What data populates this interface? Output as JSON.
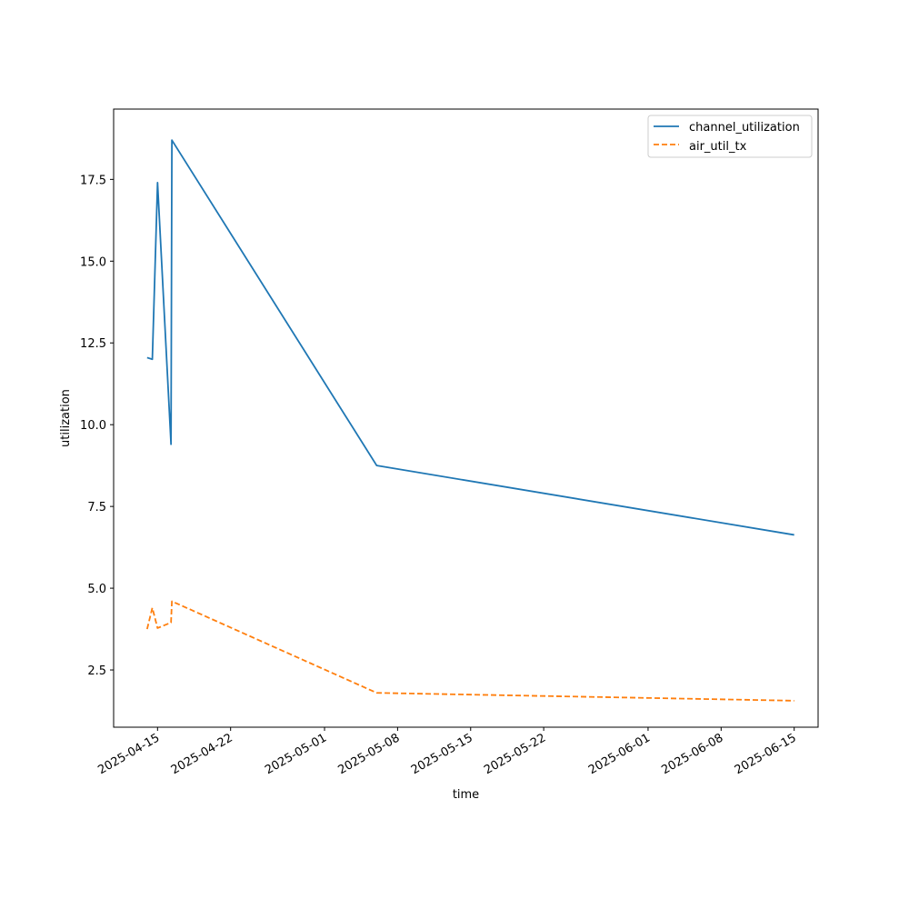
{
  "chart_data": {
    "type": "line",
    "title": "",
    "xlabel": "time",
    "ylabel": "utilization",
    "x_is_date": true,
    "xlim": [
      "2025-04-10T19:00:00",
      "2025-06-17T07:00:00"
    ],
    "ylim": [
      0.75,
      19.65
    ],
    "xticks": [
      "2025-04-15",
      "2025-04-22",
      "2025-05-01",
      "2025-05-08",
      "2025-05-15",
      "2025-05-22",
      "2025-06-01",
      "2025-06-08",
      "2025-06-15"
    ],
    "yticks": [
      2.5,
      5.0,
      7.5,
      10.0,
      12.5,
      15.0,
      17.5
    ],
    "ytick_labels": [
      "2.5",
      "5.0",
      "7.5",
      "10.0",
      "12.5",
      "15.0",
      "17.5"
    ],
    "grid": false,
    "legend_position": "upper right",
    "series": [
      {
        "name": "channel_utilization",
        "style": "solid",
        "color": "#1f77b4",
        "points": [
          {
            "x": "2025-04-14T00:00:00",
            "y": 12.05
          },
          {
            "x": "2025-04-14T12:00:00",
            "y": 12.0
          },
          {
            "x": "2025-04-15T00:00:00",
            "y": 17.4
          },
          {
            "x": "2025-04-16T07:00:00",
            "y": 9.4
          },
          {
            "x": "2025-04-16T09:00:00",
            "y": 18.7
          },
          {
            "x": "2025-05-06T00:00:00",
            "y": 8.75
          },
          {
            "x": "2025-06-15T00:00:00",
            "y": 6.63
          }
        ]
      },
      {
        "name": "air_util_tx",
        "style": "dashed",
        "color": "#ff7f0e",
        "points": [
          {
            "x": "2025-04-14T00:00:00",
            "y": 3.75
          },
          {
            "x": "2025-04-14T12:00:00",
            "y": 4.4
          },
          {
            "x": "2025-04-15T00:00:00",
            "y": 3.78
          },
          {
            "x": "2025-04-16T07:00:00",
            "y": 3.95
          },
          {
            "x": "2025-04-16T09:00:00",
            "y": 4.6
          },
          {
            "x": "2025-05-06T00:00:00",
            "y": 1.8
          },
          {
            "x": "2025-06-15T00:00:00",
            "y": 1.56
          }
        ]
      }
    ]
  }
}
